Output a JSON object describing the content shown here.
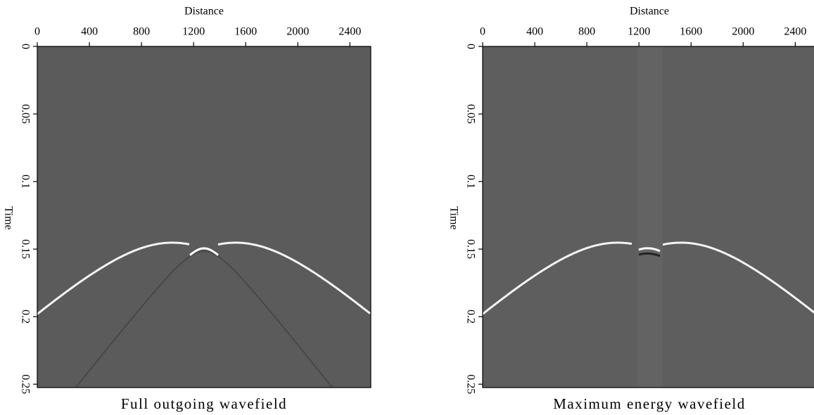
{
  "chart_data": [
    {
      "type": "image",
      "title": "Full outgoing wavefield",
      "x_label": "Distance",
      "y_label": "Time",
      "xlim": [
        0,
        2560
      ],
      "xticks": [
        0,
        400,
        800,
        1200,
        1600,
        2000,
        2400
      ],
      "ylim": [
        0,
        0.2525
      ],
      "yticks": [
        0,
        0.05,
        0.1,
        0.15,
        0.2,
        0.25
      ]
    },
    {
      "type": "image",
      "title": "Maximum energy wavefield",
      "x_label": "Distance",
      "y_label": "Time",
      "xlim": [
        0,
        2560
      ],
      "xticks": [
        0,
        400,
        800,
        1200,
        1600,
        2000,
        2400
      ],
      "ylim": [
        0,
        0.2525
      ],
      "yticks": [
        0,
        0.05,
        0.1,
        0.15,
        0.2,
        0.25
      ]
    }
  ]
}
